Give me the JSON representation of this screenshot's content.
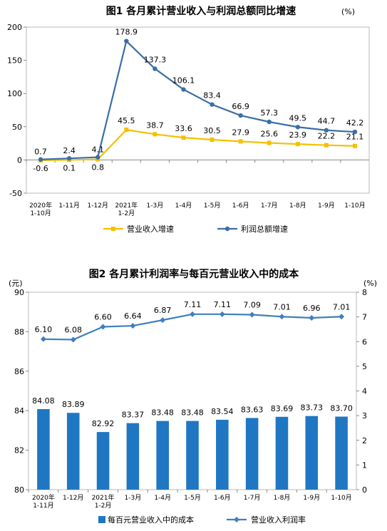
{
  "colors": {
    "growth_orange": "#f5c000",
    "profit_blue": "#3b6ea5",
    "bar_blue": "#1f77c4",
    "line_blue": "#3f7fc0",
    "axis": "#888888"
  },
  "chart_data": [
    {
      "type": "line",
      "title": "图1  各月累计营业收入与利润总额同比增速",
      "unit": "(%)",
      "categories": [
        "2020年\n1-10月",
        "1-11月",
        "1-12月",
        "2021年\n1-2月",
        "1-3月",
        "1-4月",
        "1-5月",
        "1-6月",
        "1-7月",
        "1-8月",
        "1-9月",
        "1-10月"
      ],
      "ylim": [
        -50,
        200
      ],
      "yticks": [
        "-50",
        "0",
        "50",
        "100",
        "150",
        "200"
      ],
      "grid": false,
      "legend_position": "bottom",
      "series": [
        {
          "name": "营业收入增速",
          "color": "#f5c000",
          "values": [
            -0.6,
            0.1,
            0.8,
            45.5,
            38.7,
            33.6,
            30.5,
            27.9,
            25.6,
            23.9,
            22.2,
            21.1
          ],
          "labels": [
            "-0.6",
            "0.1",
            "0.8",
            "45.5",
            "38.7",
            "33.6",
            "30.5",
            "27.9",
            "25.6",
            "23.9",
            "22.2",
            "21.1"
          ]
        },
        {
          "name": "利润总额增速",
          "color": "#3b6ea5",
          "values": [
            0.7,
            2.4,
            4.1,
            178.9,
            137.3,
            106.1,
            83.4,
            66.9,
            57.3,
            49.5,
            44.7,
            42.2
          ],
          "labels": [
            "0.7",
            "2.4",
            "4.1",
            "178.9",
            "137.3",
            "106.1",
            "83.4",
            "66.9",
            "57.3",
            "49.5",
            "44.7",
            "42.2"
          ]
        }
      ]
    },
    {
      "type": "bar",
      "title": "图2  各月累计利润率与每百元营业收入中的成本",
      "left_unit": "(元)",
      "right_unit": "(%)",
      "categories": [
        "2020年\n1-11月",
        "1-12月",
        "2021年\n1-2月",
        "1-3月",
        "1-4月",
        "1-5月",
        "1-6月",
        "1-7月",
        "1-8月",
        "1-9月",
        "1-10月"
      ],
      "ylim": [
        80,
        90
      ],
      "yticks": [
        "80",
        "82",
        "84",
        "86",
        "88",
        "90"
      ],
      "y2lim": [
        0,
        8
      ],
      "y2ticks": [
        "0",
        "1",
        "2",
        "3",
        "4",
        "5",
        "6",
        "7",
        "8"
      ],
      "grid": false,
      "legend_position": "bottom",
      "series": [
        {
          "name": "每百元营业收入中的成本",
          "kind": "bar",
          "axis": "left",
          "color": "#1f77c4",
          "values": [
            84.08,
            83.89,
            82.92,
            83.37,
            83.48,
            83.48,
            83.54,
            83.63,
            83.69,
            83.73,
            83.7
          ],
          "labels": [
            "84.08",
            "83.89",
            "82.92",
            "83.37",
            "83.48",
            "83.48",
            "83.54",
            "83.63",
            "83.69",
            "83.73",
            "83.70"
          ]
        },
        {
          "name": "营业收入利润率",
          "kind": "line",
          "axis": "right",
          "color": "#3f7fc0",
          "values": [
            6.1,
            6.08,
            6.6,
            6.64,
            6.87,
            7.11,
            7.11,
            7.09,
            7.01,
            6.96,
            7.01
          ],
          "labels": [
            "6.10",
            "6.08",
            "6.60",
            "6.64",
            "6.87",
            "7.11",
            "7.11",
            "7.09",
            "7.01",
            "6.96",
            "7.01"
          ]
        }
      ]
    }
  ]
}
